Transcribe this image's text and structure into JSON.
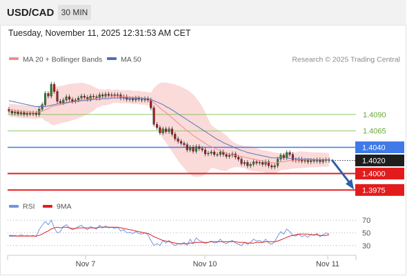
{
  "header": {
    "symbol": "USD/CAD",
    "timeframe": "30 MIN"
  },
  "timestamp": "Tuesday, November 11, 2025 12:31:53 AM CET",
  "legend": {
    "ma20": "MA 20 + Bollinger Bands",
    "ma50": "MA 50",
    "credit": "Research © 2025 Trading Central"
  },
  "rsi_legend": {
    "rsi": "RSI",
    "ma": "9MA"
  },
  "colors": {
    "resistance": "#8cc560",
    "pivot": "#3f7ae8",
    "support": "#e21c1c",
    "candle_up": "#2e8b2e",
    "candle_down": "#ad1a1a",
    "ma20": "#f08c8c",
    "ma50": "#5577bb",
    "bollinger": "#fad4d4",
    "rsi": "#6f95e0",
    "rsi_ma": "#e01e1e",
    "arrow": "#2f5fa7"
  },
  "chart_data": [
    {
      "type": "candlestick",
      "x_tick_labels": [
        "Nov 7",
        "Nov 10",
        "Nov 11"
      ],
      "ylim": [
        1.3968,
        1.4154
      ],
      "price_levels": [
        {
          "label": "1.4090",
          "value": 1.409,
          "kind": "resistance"
        },
        {
          "label": "1.4065",
          "value": 1.4065,
          "kind": "resistance"
        },
        {
          "label": "1.4040",
          "value": 1.404,
          "kind": "pivot"
        },
        {
          "label": "1.4000",
          "value": 1.4,
          "kind": "support"
        },
        {
          "label": "1.3975",
          "value": 1.3975,
          "kind": "support"
        }
      ],
      "last_price": "1.4020",
      "bias_arrow": {
        "from": 1.4021,
        "to": 1.3978
      },
      "candles_close": [
        1.4095,
        1.4092,
        1.4094,
        1.4091,
        1.4093,
        1.409,
        1.4092,
        1.4091,
        1.4092,
        1.409,
        1.4098,
        1.4105,
        1.4122,
        1.4118,
        1.4136,
        1.4125,
        1.411,
        1.4108,
        1.4112,
        1.4117,
        1.4113,
        1.411,
        1.4112,
        1.4115,
        1.4118,
        1.4116,
        1.4113,
        1.4118,
        1.4117,
        1.4115,
        1.412,
        1.4118,
        1.4121,
        1.4119,
        1.412,
        1.4119,
        1.412,
        1.4115,
        1.4117,
        1.4113,
        1.4114,
        1.4112,
        1.4115,
        1.4113,
        1.4112,
        1.4114,
        1.4112,
        1.41,
        1.4075,
        1.407,
        1.4062,
        1.4068,
        1.4064,
        1.4068,
        1.406,
        1.4053,
        1.4049,
        1.4046,
        1.4044,
        1.4036,
        1.404,
        1.4034,
        1.4041,
        1.4038,
        1.4036,
        1.403,
        1.4031,
        1.4033,
        1.4029,
        1.4029,
        1.4033,
        1.4029,
        1.4026,
        1.4028,
        1.403,
        1.4025,
        1.4022,
        1.4015,
        1.4017,
        1.4012,
        1.4014,
        1.4018,
        1.4016,
        1.4017,
        1.4014,
        1.4018,
        1.4012,
        1.401,
        1.4012,
        1.4022,
        1.4028,
        1.4024,
        1.4032,
        1.4029,
        1.4021,
        1.402,
        1.4022,
        1.4019,
        1.402,
        1.4018,
        1.402,
        1.4019,
        1.4021,
        1.4018,
        1.402,
        1.4021,
        1.402
      ],
      "ma20": [
        1.4097,
        1.4096,
        1.4096,
        1.4095,
        1.4095,
        1.4094,
        1.4094,
        1.4094,
        1.4093,
        1.4093,
        1.4094,
        1.4095,
        1.4097,
        1.4099,
        1.4102,
        1.4103,
        1.4104,
        1.4105,
        1.4106,
        1.4107,
        1.4108,
        1.4109,
        1.411,
        1.4111,
        1.4112,
        1.4113,
        1.4113,
        1.4114,
        1.4114,
        1.4115,
        1.4115,
        1.4116,
        1.4116,
        1.4117,
        1.4117,
        1.4118,
        1.4118,
        1.4117,
        1.4117,
        1.4117,
        1.4117,
        1.4116,
        1.4116,
        1.4116,
        1.4115,
        1.4115,
        1.4114,
        1.4112,
        1.4108,
        1.4104,
        1.41,
        1.4096,
        1.4093,
        1.4089,
        1.4085,
        1.4081,
        1.4077,
        1.4073,
        1.4069,
        1.4065,
        1.4062,
        1.4058,
        1.4055,
        1.4052,
        1.4049,
        1.4046,
        1.4043,
        1.4041,
        1.4039,
        1.4037,
        1.4035,
        1.4033,
        1.4031,
        1.403,
        1.4029,
        1.4028,
        1.4027,
        1.4026,
        1.4025,
        1.4024,
        1.4023,
        1.4022,
        1.4021,
        1.402,
        1.4019,
        1.4018,
        1.4017,
        1.4017,
        1.4016,
        1.4017,
        1.4018,
        1.4018,
        1.4019,
        1.402,
        1.402,
        1.402,
        1.4021,
        1.4021,
        1.4021,
        1.4021,
        1.4021,
        1.4021,
        1.4021,
        1.4021,
        1.4021,
        1.4021,
        1.4021
      ],
      "ma50": [
        1.4111,
        1.411,
        1.4109,
        1.4108,
        1.4107,
        1.4106,
        1.4105,
        1.4104,
        1.4103,
        1.4102,
        1.4102,
        1.4102,
        1.4102,
        1.4103,
        1.4104,
        1.4105,
        1.4106,
        1.4107,
        1.4107,
        1.4108,
        1.4109,
        1.4109,
        1.411,
        1.411,
        1.4111,
        1.4111,
        1.4112,
        1.4112,
        1.4113,
        1.4113,
        1.4113,
        1.4114,
        1.4114,
        1.4114,
        1.4115,
        1.4115,
        1.4115,
        1.4115,
        1.4115,
        1.4115,
        1.4115,
        1.4115,
        1.4115,
        1.4115,
        1.4115,
        1.4114,
        1.4114,
        1.4113,
        1.4111,
        1.4109,
        1.4107,
        1.4105,
        1.4102,
        1.41,
        1.4097,
        1.4094,
        1.4091,
        1.4088,
        1.4085,
        1.4082,
        1.4079,
        1.4076,
        1.4073,
        1.407,
        1.4067,
        1.4064,
        1.4061,
        1.4058,
        1.4055,
        1.4052,
        1.405,
        1.4047,
        1.4045,
        1.4043,
        1.4041,
        1.4039,
        1.4037,
        1.4035,
        1.4034,
        1.4032,
        1.4031,
        1.403,
        1.4029,
        1.4028,
        1.4027,
        1.4026,
        1.4025,
        1.4024,
        1.4024,
        1.4024,
        1.4024,
        1.4024,
        1.4024,
        1.4023,
        1.4023,
        1.4023,
        1.4022,
        1.4022,
        1.4022,
        1.4022,
        1.4022,
        1.4021,
        1.4021,
        1.4021,
        1.4021,
        1.4021,
        1.4021
      ]
    },
    {
      "type": "line",
      "name": "RSI",
      "ylim": [
        20,
        80
      ],
      "y_ticks": [
        "70",
        "50",
        "30"
      ],
      "y_tick_values": [
        70,
        50,
        30
      ],
      "rsi": [
        45,
        44,
        46,
        45,
        47,
        45,
        46,
        45,
        46,
        44,
        55,
        62,
        68,
        63,
        70,
        58,
        50,
        52,
        60,
        63,
        58,
        55,
        57,
        60,
        62,
        58,
        55,
        60,
        58,
        56,
        62,
        58,
        61,
        58,
        59,
        57,
        59,
        53,
        55,
        50,
        51,
        49,
        52,
        49,
        48,
        50,
        47,
        38,
        30,
        33,
        30,
        38,
        34,
        38,
        33,
        30,
        33,
        32,
        35,
        30,
        40,
        33,
        42,
        38,
        36,
        33,
        35,
        37,
        34,
        35,
        40,
        35,
        33,
        36,
        38,
        34,
        32,
        30,
        35,
        32,
        35,
        40,
        37,
        38,
        35,
        40,
        34,
        32,
        36,
        45,
        52,
        48,
        56,
        52,
        46,
        45,
        48,
        44,
        46,
        43,
        48,
        46,
        49,
        44,
        47,
        50,
        48
      ],
      "rsi_9ma": [
        46,
        46,
        45,
        45,
        45,
        45,
        45,
        45,
        45,
        45,
        46,
        48,
        51,
        53,
        56,
        58,
        59,
        58,
        59,
        59,
        58,
        57,
        57,
        58,
        58,
        58,
        58,
        58,
        58,
        58,
        59,
        59,
        59,
        59,
        59,
        59,
        59,
        58,
        57,
        56,
        55,
        54,
        53,
        52,
        51,
        50,
        49,
        47,
        44,
        42,
        40,
        38,
        37,
        36,
        35,
        34,
        33,
        33,
        33,
        33,
        34,
        34,
        35,
        35,
        35,
        35,
        35,
        36,
        36,
        36,
        36,
        36,
        36,
        36,
        36,
        36,
        35,
        35,
        35,
        34,
        34,
        34,
        35,
        35,
        35,
        36,
        36,
        36,
        36,
        37,
        39,
        41,
        43,
        45,
        46,
        47,
        48,
        48,
        48,
        48,
        47,
        47,
        47,
        46,
        46,
        46,
        47
      ]
    }
  ]
}
